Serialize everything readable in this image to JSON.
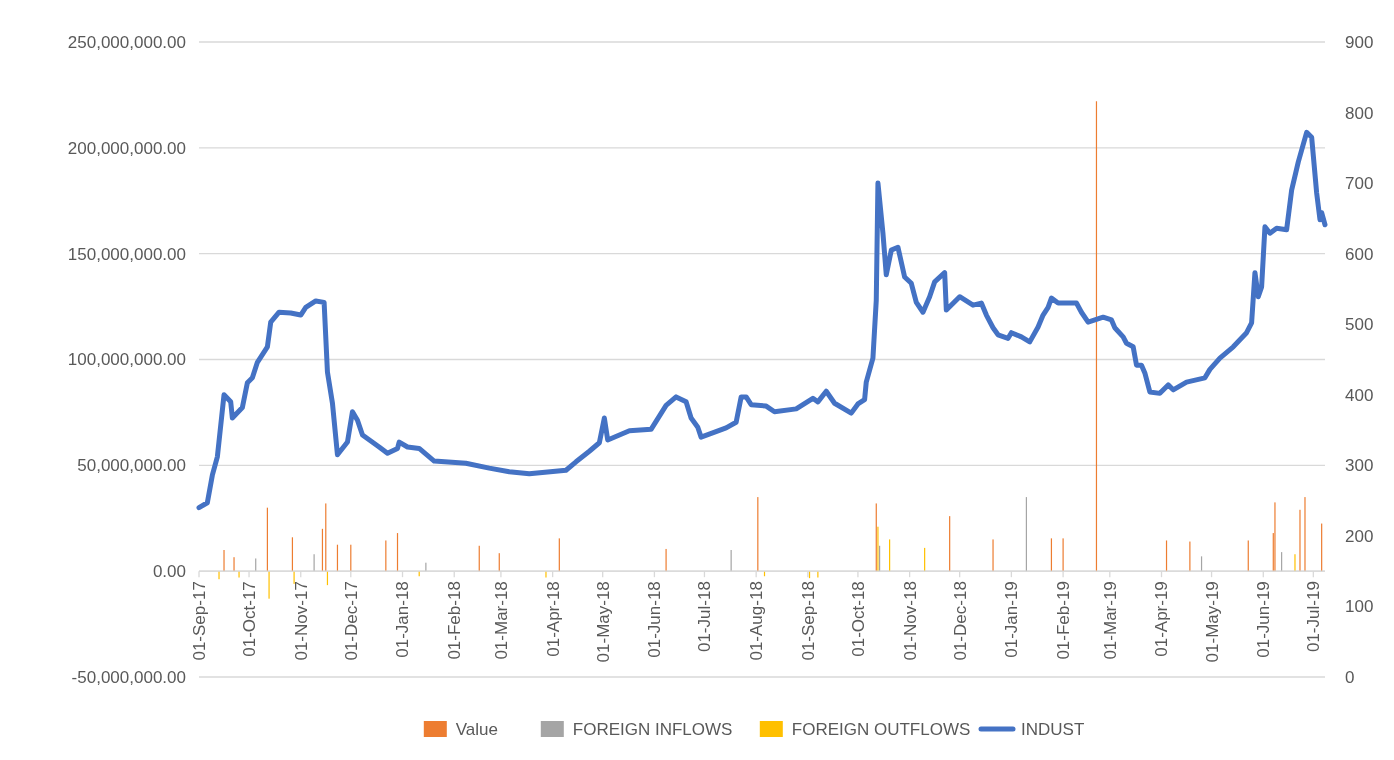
{
  "chart_data": {
    "type": "bar",
    "xlim": [
      "2017-09-01",
      "2019-07-08"
    ],
    "xticks": [
      {
        "value": "2017-09-01",
        "label": "01-Sep-17"
      },
      {
        "value": "2017-10-01",
        "label": "01-Oct-17"
      },
      {
        "value": "2017-11-01",
        "label": "01-Nov-17"
      },
      {
        "value": "2017-12-01",
        "label": "01-Dec-17"
      },
      {
        "value": "2018-01-01",
        "label": "01-Jan-18"
      },
      {
        "value": "2018-02-01",
        "label": "01-Feb-18"
      },
      {
        "value": "2018-03-01",
        "label": "01-Mar-18"
      },
      {
        "value": "2018-04-01",
        "label": "01-Apr-18"
      },
      {
        "value": "2018-05-01",
        "label": "01-May-18"
      },
      {
        "value": "2018-06-01",
        "label": "01-Jun-18"
      },
      {
        "value": "2018-07-01",
        "label": "01-Jul-18"
      },
      {
        "value": "2018-08-01",
        "label": "01-Aug-18"
      },
      {
        "value": "2018-09-01",
        "label": "01-Sep-18"
      },
      {
        "value": "2018-10-01",
        "label": "01-Oct-18"
      },
      {
        "value": "2018-11-01",
        "label": "01-Nov-18"
      },
      {
        "value": "2018-12-01",
        "label": "01-Dec-18"
      },
      {
        "value": "2019-01-01",
        "label": "01-Jan-19"
      },
      {
        "value": "2019-02-01",
        "label": "01-Feb-19"
      },
      {
        "value": "2019-03-01",
        "label": "01-Mar-19"
      },
      {
        "value": "2019-04-01",
        "label": "01-Apr-19"
      },
      {
        "value": "2019-05-01",
        "label": "01-May-19"
      },
      {
        "value": "2019-06-01",
        "label": "01-Jun-19"
      },
      {
        "value": "2019-07-01",
        "label": "01-Jul-19"
      }
    ],
    "ylim": [
      -50000000,
      250000000
    ],
    "yticks": [
      {
        "value": -50000000,
        "label": "-50,000,000.00"
      },
      {
        "value": 0,
        "label": "0.00"
      },
      {
        "value": 50000000,
        "label": "50,000,000.00"
      },
      {
        "value": 100000000,
        "label": "100,000,000.00"
      },
      {
        "value": 150000000,
        "label": "150,000,000.00"
      },
      {
        "value": 200000000,
        "label": "200,000,000.00"
      },
      {
        "value": 250000000,
        "label": "250,000,000.00"
      }
    ],
    "y2lim": [
      0,
      900
    ],
    "y2ticks": [
      0,
      100,
      200,
      300,
      400,
      500,
      600,
      700,
      800,
      900
    ],
    "grid": "y",
    "legend": "bottom",
    "series": [
      {
        "name": "Value",
        "color": "#ed7d31",
        "x": [
          "2017-09-16",
          "2017-09-22",
          "2017-10-12",
          "2017-10-27",
          "2017-11-14",
          "2017-11-16",
          "2017-11-23",
          "2017-12-01",
          "2017-12-22",
          "2017-12-29",
          "2018-02-16",
          "2018-02-28",
          "2018-04-05",
          "2018-06-08",
          "2018-08-02",
          "2018-10-12",
          "2018-11-25",
          "2018-12-21",
          "2019-01-25",
          "2019-02-01",
          "2019-02-21",
          "2019-04-04",
          "2019-04-18",
          "2019-05-23",
          "2019-06-07",
          "2019-06-08",
          "2019-06-23",
          "2019-06-26",
          "2019-07-06"
        ],
        "values": [
          10000000,
          6600000,
          30000000,
          16000000,
          20000000,
          32000000,
          12500000,
          12500000,
          14500000,
          18000000,
          12000000,
          8500000,
          15500000,
          10500000,
          35000000,
          32000000,
          26000000,
          15000000,
          15500000,
          15500000,
          222000000,
          14500000,
          14000000,
          14500000,
          18000000,
          32500000,
          29000000,
          35000000,
          22500000
        ]
      },
      {
        "name": "FOREIGN INFLOWS",
        "color": "#a5a5a5",
        "x": [
          "2017-10-05",
          "2017-11-09",
          "2018-01-15",
          "2018-07-17",
          "2018-10-14",
          "2019-01-10",
          "2019-04-25",
          "2019-06-12"
        ],
        "values": [
          6000000,
          8000000,
          4000000,
          10000000,
          12000000,
          35000000,
          7000000,
          9000000
        ]
      },
      {
        "name": "FOREIGN OUTFLOWS",
        "color": "#ffc000",
        "x": [
          "2017-09-13",
          "2017-09-25",
          "2017-10-13",
          "2017-10-28",
          "2017-11-17",
          "2018-01-11",
          "2018-03-28",
          "2018-08-06",
          "2018-09-02",
          "2018-09-07",
          "2018-10-13",
          "2018-10-20",
          "2018-11-10",
          "2019-06-20"
        ],
        "values": [
          -3800000,
          -3000000,
          -13000000,
          -6000000,
          -6600000,
          -2400000,
          -3000000,
          -2400000,
          -3300000,
          -3000000,
          21000000,
          15000000,
          11000000,
          8000000
        ]
      },
      {
        "name": "INDUST",
        "type": "line",
        "axis": "y2",
        "color": "#4472c4",
        "x": [
          "2017-09-01",
          "2017-09-06",
          "2017-09-09",
          "2017-09-12",
          "2017-09-16",
          "2017-09-20",
          "2017-09-21",
          "2017-09-27",
          "2017-09-30",
          "2017-10-03",
          "2017-10-06",
          "2017-10-12",
          "2017-10-14",
          "2017-10-19",
          "2017-10-26",
          "2017-11-01",
          "2017-11-04",
          "2017-11-10",
          "2017-11-15",
          "2017-11-17",
          "2017-11-20",
          "2017-11-23",
          "2017-11-29",
          "2017-12-02",
          "2017-12-05",
          "2017-12-08",
          "2017-12-18",
          "2017-12-23",
          "2017-12-29",
          "2017-12-30",
          "2018-01-04",
          "2018-01-11",
          "2018-01-20",
          "2018-02-08",
          "2018-02-22",
          "2018-03-06",
          "2018-03-18",
          "2018-04-09",
          "2018-04-15",
          "2018-04-23",
          "2018-04-29",
          "2018-05-02",
          "2018-05-04",
          "2018-05-17",
          "2018-05-30",
          "2018-06-08",
          "2018-06-14",
          "2018-06-20",
          "2018-06-23",
          "2018-06-27",
          "2018-06-29",
          "2018-07-14",
          "2018-07-20",
          "2018-07-23",
          "2018-07-26",
          "2018-07-29",
          "2018-08-07",
          "2018-08-12",
          "2018-08-25",
          "2018-09-04",
          "2018-09-07",
          "2018-09-12",
          "2018-09-17",
          "2018-09-27",
          "2018-10-01",
          "2018-10-05",
          "2018-10-06",
          "2018-10-10",
          "2018-10-12",
          "2018-10-13",
          "2018-10-16",
          "2018-10-18",
          "2018-10-21",
          "2018-10-25",
          "2018-10-29",
          "2018-11-02",
          "2018-11-05",
          "2018-11-09",
          "2018-11-13",
          "2018-11-16",
          "2018-11-22",
          "2018-11-23",
          "2018-12-01",
          "2018-12-09",
          "2018-12-14",
          "2018-12-17",
          "2018-12-21",
          "2018-12-24",
          "2018-12-30",
          "2019-01-01",
          "2019-01-07",
          "2019-01-12",
          "2019-01-17",
          "2019-01-20",
          "2019-01-23",
          "2019-01-25",
          "2019-01-29",
          "2019-02-09",
          "2019-02-12",
          "2019-02-16",
          "2019-02-25",
          "2019-03-02",
          "2019-03-04",
          "2019-03-09",
          "2019-03-11",
          "2019-03-15",
          "2019-03-17",
          "2019-03-20",
          "2019-03-22",
          "2019-03-25",
          "2019-03-31",
          "2019-04-05",
          "2019-04-08",
          "2019-04-16",
          "2019-04-27",
          "2019-04-30",
          "2019-05-06",
          "2019-05-14",
          "2019-05-22",
          "2019-05-25",
          "2019-05-27",
          "2019-05-29",
          "2019-05-31",
          "2019-06-02",
          "2019-06-05",
          "2019-06-09",
          "2019-06-15",
          "2019-06-18",
          "2019-06-22",
          "2019-06-27",
          "2019-06-30",
          "2019-07-03",
          "2019-07-05",
          "2019-07-06",
          "2019-07-08"
        ],
        "values": [
          240,
          247,
          286,
          312,
          400,
          390,
          367,
          382,
          417,
          424,
          446,
          468,
          503,
          517,
          516,
          513,
          524,
          533,
          531,
          432,
          388,
          315,
          333,
          376,
          364,
          343,
          326,
          317,
          324,
          333,
          326,
          324,
          306,
          303,
          296,
          291,
          288,
          293,
          305,
          320,
          332,
          367,
          336,
          349,
          351,
          385,
          397,
          390,
          367,
          354,
          340,
          353,
          361,
          397,
          397,
          386,
          384,
          376,
          380,
          395,
          390,
          405,
          388,
          374,
          387,
          393,
          418,
          452,
          534,
          700,
          629,
          570,
          605,
          609,
          567,
          558,
          531,
          517,
          539,
          560,
          573,
          520,
          539,
          527,
          530,
          513,
          495,
          485,
          480,
          488,
          482,
          475,
          496,
          513,
          524,
          537,
          530,
          530,
          517,
          503,
          510,
          506,
          495,
          482,
          473,
          468,
          442,
          442,
          431,
          404,
          402,
          414,
          407,
          418,
          424,
          436,
          452,
          468,
          488,
          502,
          573,
          539,
          553,
          638,
          629,
          636,
          634,
          690,
          730,
          772,
          765,
          686,
          648,
          658,
          641
        ]
      }
    ]
  }
}
